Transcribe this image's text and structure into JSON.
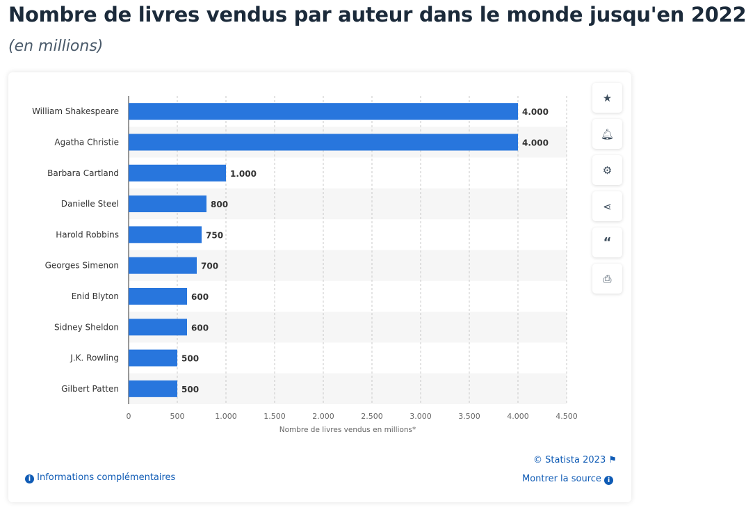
{
  "title": "Nombre de livres vendus par auteur dans le monde jusqu'en 2022",
  "subtitle": "(en millions)",
  "chart_data": {
    "type": "bar",
    "orientation": "horizontal",
    "categories": [
      "William Shakespeare",
      "Agatha Christie",
      "Barbara Cartland",
      "Danielle Steel",
      "Harold Robbins",
      "Georges Simenon",
      "Enid Blyton",
      "Sidney Sheldon",
      "J.K. Rowling",
      "Gilbert Patten"
    ],
    "values": [
      4000,
      4000,
      1000,
      800,
      750,
      700,
      600,
      600,
      500,
      500
    ],
    "data_labels": [
      "4.000",
      "4.000",
      "1.000",
      "800",
      "750",
      "700",
      "600",
      "600",
      "500",
      "500"
    ],
    "xlabel": "Nombre de livres vendus en millions*",
    "xlim": [
      0,
      4500
    ],
    "xticks": [
      0,
      500,
      1000,
      1500,
      2000,
      2500,
      3000,
      3500,
      4000,
      4500
    ],
    "xtick_labels": [
      "0",
      "500",
      "1.000",
      "1.500",
      "2.000",
      "2.500",
      "3.000",
      "3.500",
      "4.000",
      "4.500"
    ],
    "grid": "vertical dashed",
    "bar_color": "#2876dd"
  },
  "sidebar": {
    "icons": [
      "star-icon",
      "bell-icon",
      "gear-icon",
      "share-icon",
      "quote-icon",
      "print-icon"
    ]
  },
  "footer": {
    "copyright": "© Statista 2023",
    "source": "Montrer la source",
    "info": "Informations complémentaires"
  }
}
